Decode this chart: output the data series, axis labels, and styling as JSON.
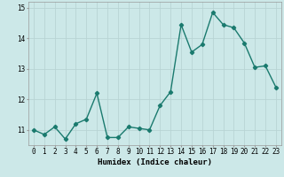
{
  "x": [
    0,
    1,
    2,
    3,
    4,
    5,
    6,
    7,
    8,
    9,
    10,
    11,
    12,
    13,
    14,
    15,
    16,
    17,
    18,
    19,
    20,
    21,
    22,
    23
  ],
  "y": [
    11.0,
    10.85,
    11.1,
    10.7,
    11.2,
    11.35,
    12.2,
    10.75,
    10.75,
    11.1,
    11.05,
    11.0,
    11.8,
    12.25,
    14.45,
    13.55,
    13.8,
    14.85,
    14.45,
    14.35,
    13.85,
    13.05,
    13.1,
    12.4
  ],
  "line_color": "#1a7a6e",
  "marker": "D",
  "markersize": 2.2,
  "linewidth": 1.0,
  "bg_color": "#cce8e8",
  "grid_color": "#b8d4d4",
  "xlabel": "Humidex (Indice chaleur)",
  "xlim": [
    -0.5,
    23.5
  ],
  "ylim": [
    10.5,
    15.2
  ],
  "yticks": [
    11,
    12,
    13,
    14,
    15
  ],
  "xtick_labels": [
    "0",
    "1",
    "2",
    "3",
    "4",
    "5",
    "6",
    "7",
    "8",
    "9",
    "10",
    "11",
    "12",
    "13",
    "14",
    "15",
    "16",
    "17",
    "18",
    "19",
    "20",
    "21",
    "22",
    "23"
  ],
  "tick_fontsize": 5.5,
  "xlabel_fontsize": 6.5
}
